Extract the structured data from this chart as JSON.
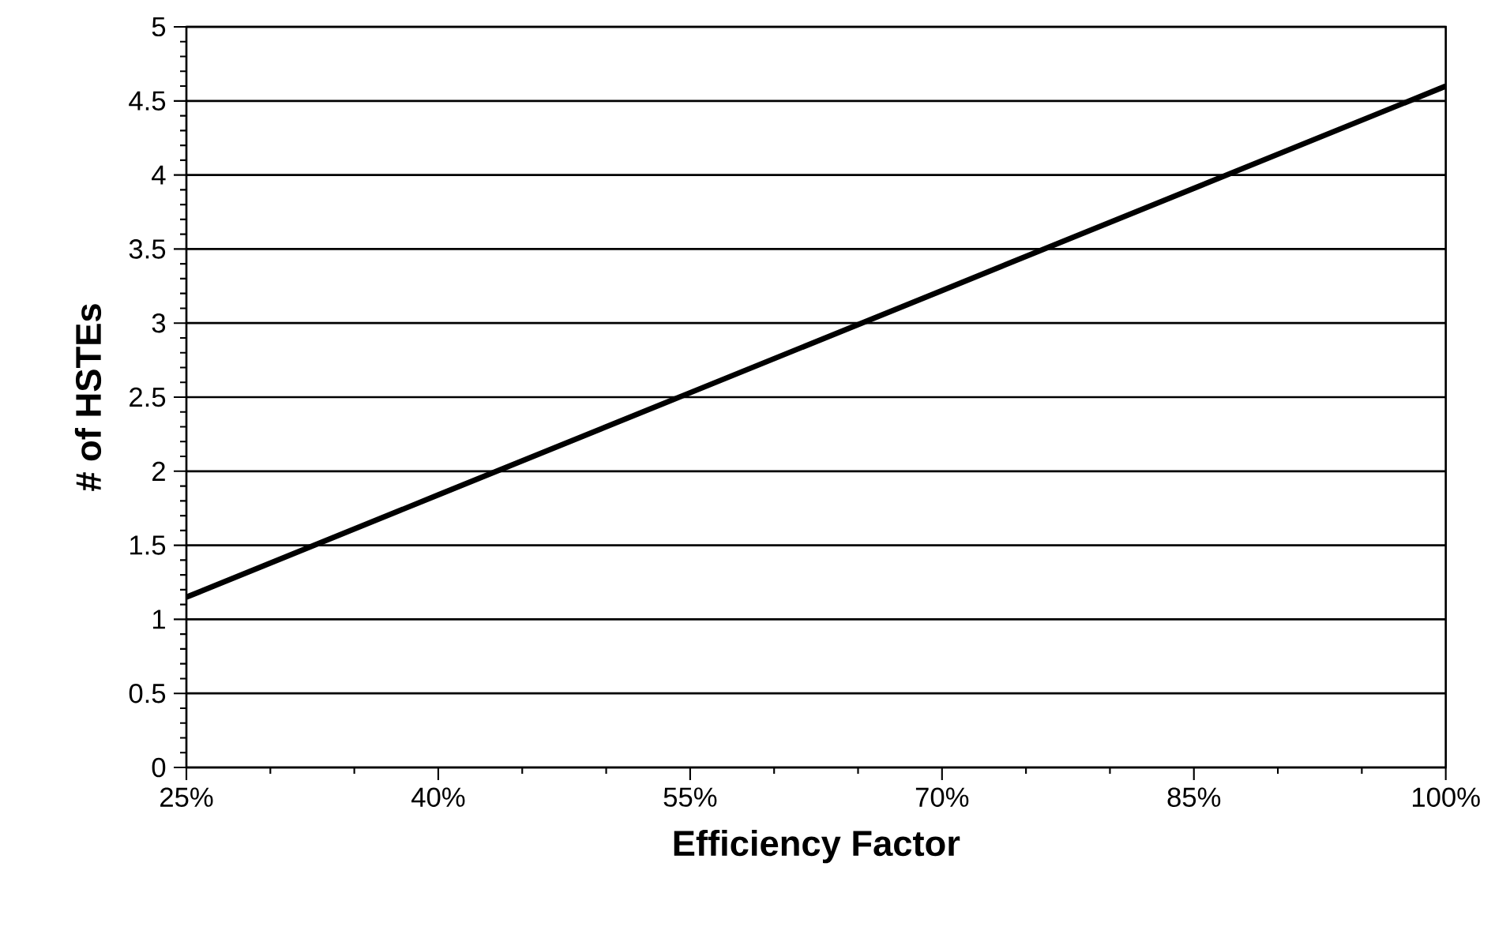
{
  "chart_data": {
    "type": "line",
    "xlabel": "Efficiency Factor",
    "ylabel": "# of HSTEs",
    "x": [
      25,
      40,
      55,
      70,
      85,
      100
    ],
    "series": [
      {
        "color": "#000000",
        "values": [
          1.15,
          1.84,
          2.53,
          3.22,
          3.91,
          4.6
        ]
      }
    ],
    "xlim": [
      25,
      100
    ],
    "ylim": [
      0,
      5
    ],
    "xticks": [
      {
        "value": 25,
        "label": "25%"
      },
      {
        "value": 40,
        "label": "40%"
      },
      {
        "value": 55,
        "label": "55%"
      },
      {
        "value": 70,
        "label": "70%"
      },
      {
        "value": 85,
        "label": "85%"
      },
      {
        "value": 100,
        "label": "100%"
      }
    ],
    "yticks": [
      0,
      0.5,
      1,
      1.5,
      2,
      2.5,
      3,
      3.5,
      4,
      4.5,
      5
    ],
    "grid": "y",
    "marker": "none",
    "line_style": "solid"
  }
}
